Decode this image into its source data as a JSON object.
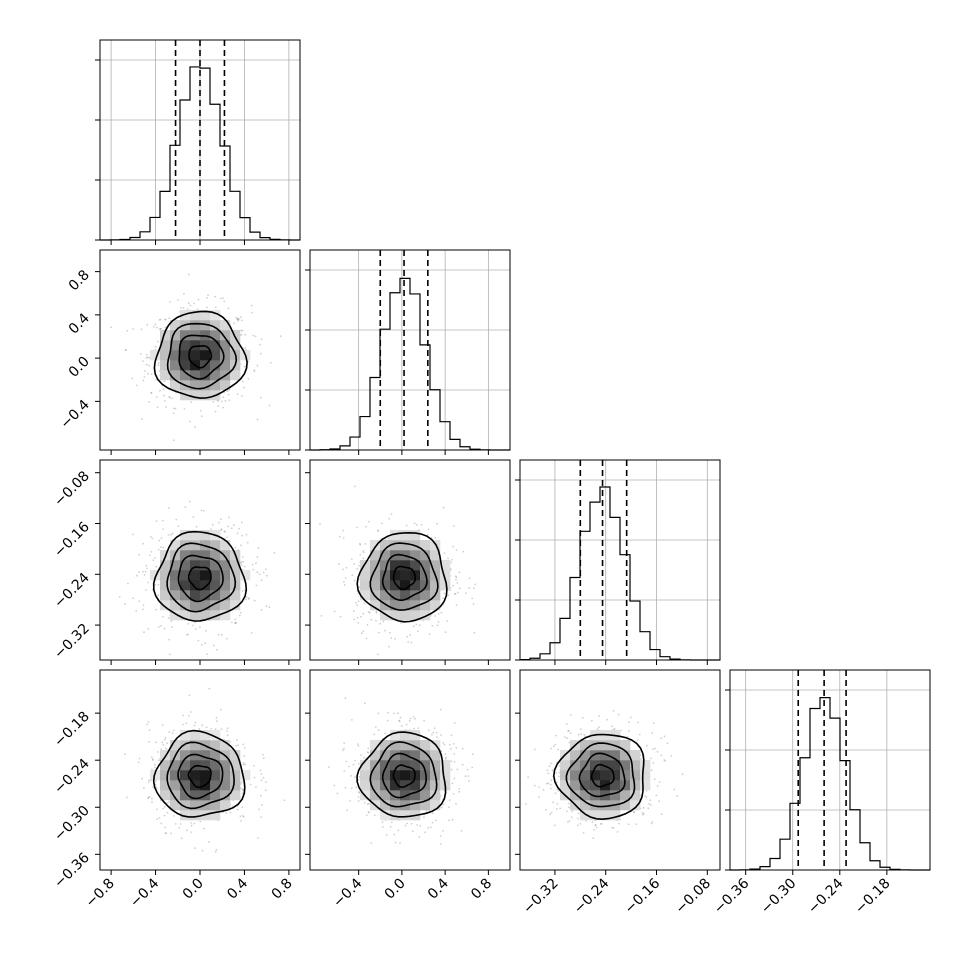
{
  "chart_data": {
    "type": "corner",
    "parameters": [
      {
        "center": 0.0,
        "sigma": 0.2,
        "range": [
          -0.9,
          0.9
        ],
        "ticks": [
          -0.8,
          -0.4,
          0.0,
          0.4,
          0.8
        ],
        "tick_labels": [
          "−0.8",
          "−0.4",
          "0.0",
          "0.4",
          "0.8"
        ],
        "quantiles": [
          -0.22,
          0.0,
          0.22
        ]
      },
      {
        "center": 0.02,
        "sigma": 0.2,
        "range": [
          -0.85,
          1.0
        ],
        "ticks": [
          -0.4,
          0.0,
          0.4,
          0.8
        ],
        "tick_labels": [
          "−0.4",
          "0.0",
          "0.4",
          "0.8"
        ],
        "quantiles": [
          -0.2,
          0.02,
          0.24
        ]
      },
      {
        "center": -0.245,
        "sigma": 0.035,
        "range": [
          -0.375,
          -0.06
        ],
        "ticks": [
          -0.32,
          -0.24,
          -0.16,
          -0.08
        ],
        "tick_labels": [
          "−0.32",
          "−0.24",
          "−0.16",
          "−0.08"
        ],
        "quantiles": [
          -0.28,
          -0.245,
          -0.207
        ]
      },
      {
        "center": -0.26,
        "sigma": 0.027,
        "range": [
          -0.38,
          -0.125
        ],
        "ticks": [
          -0.36,
          -0.3,
          -0.24,
          -0.18
        ],
        "tick_labels": [
          "−0.36",
          "−0.30",
          "−0.24",
          "−0.18"
        ],
        "quantiles": [
          -0.293,
          -0.26,
          -0.232
        ]
      }
    ],
    "contour_levels_sigma": [
      0.5,
      1.0,
      1.5,
      2.0
    ],
    "grid": true,
    "n_samples": 4000
  }
}
